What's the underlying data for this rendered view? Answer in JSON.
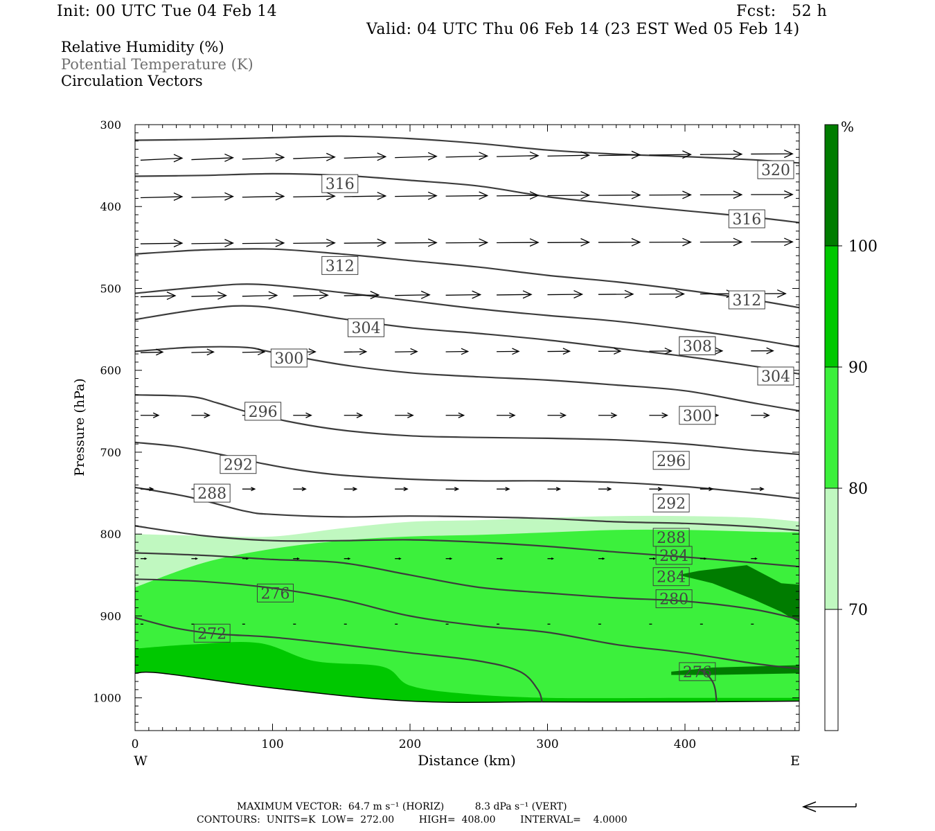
{
  "header": {
    "init": "Init: 00 UTC Tue 04 Feb 14",
    "fcst": "Fcst:   52 h",
    "valid": "Valid: 04 UTC Thu 06 Feb 14 (23 EST Wed 05 Feb 14)"
  },
  "legend_titles": [
    "Relative Humidity (%)",
    "Potential Temperature (K)",
    "Circulation Vectors"
  ],
  "colorbar": {
    "unit": "%",
    "labels": [
      "70",
      "80",
      "90",
      "100"
    ],
    "colors": [
      "#ffffff",
      "#c0f8c0",
      "#3cf03c",
      "#00c800",
      "#007c00"
    ]
  },
  "footer": {
    "line1": "MAXIMUM VECTOR:  64.7 m s⁻¹ (HORIZ)          8.3 dPa s⁻¹ (VERT)",
    "line2": "CONTOURS:  UNITS=K  LOW=  272.00        HIGH=  408.00        INTERVAL=    4.0000"
  },
  "chart_data": {
    "type": "cross-section",
    "xlabel": "Distance (km)",
    "ylabel": "Pressure (hPa)",
    "x_ticks": [
      "0",
      "100",
      "200",
      "300",
      "400"
    ],
    "y_ticks": [
      "300",
      "400",
      "500",
      "600",
      "700",
      "800",
      "900",
      "1000"
    ],
    "x_end_labels": {
      "west": "W",
      "east": "E"
    },
    "xlim": [
      0,
      485
    ],
    "ylim": [
      1040,
      300
    ],
    "terrain_pressure": {
      "x": [
        0,
        20,
        100,
        200,
        300,
        400,
        485
      ],
      "p": [
        970,
        970,
        988,
        1004,
        1005,
        1005,
        1004
      ]
    },
    "rh_fills": [
      {
        "level": 70,
        "color": "#c0f8c0",
        "x": [
          0,
          50,
          100,
          150,
          200,
          250,
          300,
          350,
          400,
          450,
          485
        ],
        "p": [
          800,
          802,
          803,
          793,
          785,
          783,
          780,
          778,
          778,
          780,
          785
        ]
      },
      {
        "level": 80,
        "color": "#3cf03c",
        "x": [
          0,
          50,
          100,
          150,
          200,
          250,
          300,
          350,
          400,
          450,
          485
        ],
        "p": [
          865,
          835,
          818,
          808,
          803,
          801,
          798,
          795,
          795,
          797,
          798
        ]
      },
      {
        "level": 90,
        "color": "#00c800",
        "x": [
          0,
          40,
          90,
          130,
          180,
          200,
          240,
          300,
          400,
          485
        ],
        "p": [
          940,
          935,
          933,
          955,
          962,
          985,
          995,
          1000,
          1000,
          1000
        ]
      },
      {
        "level": 100,
        "color": "#007c00",
        "x": [
          395,
          410,
          445,
          470,
          485,
          485,
          470,
          450,
          420,
          395
        ],
        "p": [
          850,
          845,
          838,
          860,
          862,
          910,
          895,
          880,
          860,
          850
        ]
      },
      {
        "level": 100,
        "color": "#007c00",
        "x": [
          390,
          420,
          485,
          485,
          420,
          390
        ],
        "p": [
          968,
          963,
          960,
          970,
          972,
          972
        ]
      }
    ],
    "theta_contours": [
      {
        "value": 272,
        "label_x": 56,
        "label_p": 921,
        "x": [
          0,
          30,
          60,
          100,
          150,
          200,
          250,
          280,
          293,
          296
        ],
        "p": [
          902,
          915,
          922,
          926,
          935,
          945,
          955,
          968,
          990,
          1005
        ]
      },
      {
        "value": 272,
        "label_x": null,
        "label_p": null,
        "x": [
          410,
          415,
          420,
          422,
          423
        ],
        "p": [
          965,
          970,
          980,
          990,
          1005
        ]
      },
      {
        "value": 276,
        "label_x": 102,
        "label_p": 872,
        "x": [
          0,
          50,
          100,
          150,
          200,
          250,
          300,
          350,
          400,
          450,
          485
        ],
        "p": [
          855,
          858,
          866,
          880,
          900,
          912,
          920,
          935,
          945,
          958,
          965
        ]
      },
      {
        "value": 280,
        "label_x": 392,
        "label_p": 879,
        "x": [
          0,
          50,
          100,
          150,
          200,
          250,
          300,
          350,
          400,
          450,
          485
        ],
        "p": [
          823,
          826,
          831,
          835,
          850,
          865,
          872,
          878,
          882,
          892,
          905
        ]
      },
      {
        "value": 284,
        "label_x": 392,
        "label_p": 826,
        "x": [
          0,
          50,
          100,
          150,
          200,
          250,
          300,
          350,
          400,
          450,
          485
        ],
        "p": [
          790,
          802,
          808,
          808,
          807,
          810,
          815,
          822,
          828,
          835,
          840
        ]
      },
      {
        "value": 288,
        "label_x": 56,
        "label_p": 750,
        "x": [
          0,
          40,
          80,
          100,
          150,
          200,
          250,
          300,
          350,
          400,
          450,
          485
        ],
        "p": [
          743,
          755,
          772,
          776,
          779,
          778,
          779,
          781,
          785,
          787,
          791,
          796
        ]
      },
      {
        "value": 292,
        "label_x": 75,
        "label_p": 715,
        "x": [
          0,
          30,
          60,
          90,
          120,
          150,
          200,
          250,
          300,
          350,
          400,
          450,
          485
        ],
        "p": [
          688,
          693,
          702,
          713,
          722,
          728,
          733,
          735,
          735,
          737,
          742,
          750,
          757
        ]
      },
      {
        "value": 296,
        "label_x": 93,
        "label_p": 650,
        "x": [
          0,
          40,
          60,
          80,
          110,
          150,
          200,
          250,
          300,
          350,
          400,
          450,
          485
        ],
        "p": [
          630,
          632,
          640,
          650,
          662,
          673,
          680,
          682,
          683,
          685,
          690,
          698,
          703
        ]
      },
      {
        "value": 300,
        "label_x": 112,
        "label_p": 585,
        "x": [
          0,
          40,
          80,
          100,
          150,
          200,
          250,
          300,
          350,
          400,
          450,
          485
        ],
        "p": [
          577,
          572,
          572,
          578,
          593,
          603,
          608,
          612,
          618,
          625,
          640,
          650
        ]
      },
      {
        "value": 304,
        "label_x": 168,
        "label_p": 548,
        "x": [
          0,
          50,
          90,
          150,
          200,
          250,
          300,
          350,
          400,
          450,
          485
        ],
        "p": [
          538,
          525,
          522,
          537,
          548,
          555,
          563,
          573,
          583,
          595,
          605
        ]
      },
      {
        "value": 308,
        "label_x": 409,
        "label_p": 570,
        "x": [
          0,
          50,
          90,
          150,
          200,
          250,
          300,
          350,
          400,
          450,
          485
        ],
        "p": [
          506,
          498,
          495,
          505,
          515,
          525,
          533,
          540,
          550,
          562,
          572
        ]
      },
      {
        "value": 312,
        "label_x": 149,
        "label_p": 472,
        "x": [
          0,
          50,
          100,
          150,
          200,
          250,
          300,
          350,
          400,
          450,
          485
        ],
        "p": [
          458,
          453,
          452,
          458,
          466,
          474,
          484,
          492,
          502,
          514,
          524
        ]
      },
      {
        "value": 316,
        "label_x": 149,
        "label_p": 372,
        "x": [
          0,
          50,
          100,
          150,
          200,
          250,
          300,
          350,
          400,
          450,
          485
        ],
        "p": [
          363,
          362,
          360,
          362,
          368,
          375,
          388,
          397,
          405,
          413,
          420
        ]
      },
      {
        "value": 320,
        "label_x": 466,
        "label_p": 355,
        "x": [
          0,
          50,
          100,
          150,
          200,
          250,
          300,
          350,
          400,
          450,
          485
        ],
        "p": [
          319,
          318,
          316,
          314,
          317,
          323,
          331,
          336,
          339,
          343,
          347
        ]
      }
    ],
    "extra_contour_labels": [
      {
        "value": "320",
        "x": 466,
        "p": 355
      },
      {
        "value": "316",
        "x": 445,
        "p": 415
      },
      {
        "value": "312",
        "x": 445,
        "p": 514
      },
      {
        "value": "308",
        "x": 409,
        "p": 570
      },
      {
        "value": "304",
        "x": 466,
        "p": 607
      },
      {
        "value": "300",
        "x": 409,
        "p": 655
      },
      {
        "value": "296",
        "x": 390,
        "p": 710
      },
      {
        "value": "292",
        "x": 390,
        "p": 762
      },
      {
        "value": "288",
        "x": 390,
        "p": 804
      },
      {
        "value": "284",
        "x": 390,
        "p": 852
      },
      {
        "value": "276",
        "x": 409,
        "p": 968
      }
    ],
    "vector_rows": [
      {
        "p": 335,
        "len": 30,
        "x_start": 0,
        "x_end": 480,
        "step": 37,
        "lift": 10
      },
      {
        "p": 385,
        "len": 30,
        "x_start": 0,
        "x_end": 480,
        "step": 37,
        "lift": 5
      },
      {
        "p": 443,
        "len": 30,
        "x_start": 0,
        "x_end": 480,
        "step": 37,
        "lift": 3
      },
      {
        "p": 506,
        "len": 25,
        "x_start": 0,
        "x_end": 480,
        "step": 37,
        "lift": 5
      },
      {
        "p": 576,
        "len": 16,
        "x_start": 0,
        "x_end": 480,
        "step": 37,
        "lift": 3
      },
      {
        "p": 655,
        "len": 13,
        "x_start": 0,
        "x_end": 480,
        "step": 37,
        "lift": 0
      },
      {
        "p": 745,
        "len": 9,
        "x_start": 0,
        "x_end": 480,
        "step": 37,
        "lift": 0
      },
      {
        "p": 830,
        "len": 4,
        "x_start": 0,
        "x_end": 480,
        "step": 37,
        "lift": 0
      },
      {
        "p": 910,
        "len": 2,
        "x_start": 0,
        "x_end": 480,
        "step": 37,
        "lift": 0
      }
    ],
    "reference_arrow": {
      "direction": "west"
    }
  }
}
